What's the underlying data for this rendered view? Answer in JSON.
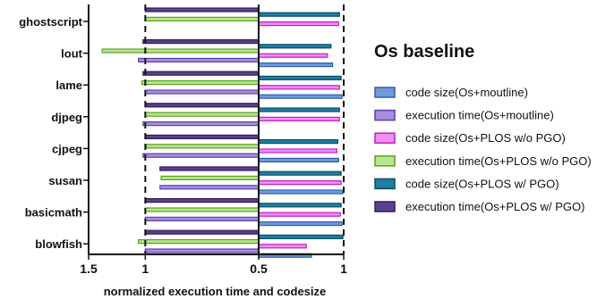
{
  "chart_data": {
    "type": "bar",
    "orientation": "horizontal",
    "title": "",
    "xlabel": "normalized  execution time and  codesize",
    "ylabel": "",
    "legend_title": "Os baseline",
    "legend_position": "right",
    "grid": false,
    "categories": [
      "ghostscript",
      "lout",
      "lame",
      "djpeg",
      "cjpeg",
      "susan",
      "basicmath",
      "blowfish"
    ],
    "xticks": [
      "1.5",
      "1",
      "0.5",
      "1"
    ],
    "reference_lines": [
      "1",
      "0.5",
      "1"
    ],
    "series": [
      {
        "name": "code size(Os+moutline)",
        "side": "right",
        "color_fill": "#6f9ad8",
        "color_edge": "#2e5fb0",
        "values": [
          null,
          0.87,
          0.98,
          null,
          0.94,
          0.99,
          0.98,
          0.62
        ]
      },
      {
        "name": "execution time(Os+moutline)",
        "side": "left",
        "color_fill": "#a88ee0",
        "color_edge": "#5b3ea8",
        "values": [
          null,
          1.06,
          1.0,
          1.02,
          1.02,
          0.87,
          1.0,
          1.0
        ]
      },
      {
        "name": "code size(Os+PLOS w/o PGO)",
        "side": "right",
        "color_fill": "#f08ff0",
        "color_edge": "#c020c0",
        "values": [
          0.94,
          0.81,
          0.95,
          0.95,
          0.92,
          0.97,
          0.96,
          0.56
        ]
      },
      {
        "name": "execution time(Os+PLOS w/o PGO)",
        "side": "left",
        "color_fill": "#b9e68e",
        "color_edge": "#5aa020",
        "values": [
          1.0,
          1.38,
          1.03,
          1.0,
          0.99,
          0.86,
          1.0,
          1.06
        ]
      },
      {
        "name": "code size(Os+PLOS w/ PGO)",
        "side": "right",
        "color_fill": "#1f7ea1",
        "color_edge": "#0d4e66",
        "values": [
          0.95,
          0.85,
          0.97,
          0.95,
          0.93,
          0.97,
          0.97,
          0.99
        ]
      },
      {
        "name": "execution time(Os+PLOS w/ PGO)",
        "side": "left",
        "color_fill": "#5b3f8f",
        "color_edge": "#2e1e55",
        "values": [
          1.0,
          1.02,
          1.02,
          1.0,
          1.0,
          0.87,
          1.0,
          1.0
        ]
      }
    ]
  }
}
